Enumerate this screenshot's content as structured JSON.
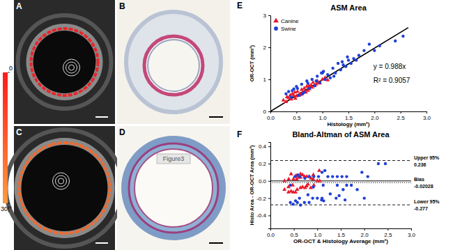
{
  "panels": {
    "labels": [
      "A",
      "B",
      "C",
      "D",
      "E",
      "F"
    ],
    "colorbar": {
      "range": [
        0,
        30
      ],
      "ticks": [
        0,
        {
          "value": 30,
          "label": "30|°"
        }
      ]
    },
    "watermark": "Figure3"
  },
  "chart_data": [
    {
      "type": "scatter",
      "title": "ASM Area",
      "x_label": "Histology (mm²)",
      "y_label": "OR-OCT (mm²)",
      "xlim": [
        0,
        3
      ],
      "ylim": [
        0,
        3
      ],
      "xticks": [
        {
          "value": 0,
          "label": "0.0"
        },
        0.5,
        {
          "value": 1,
          "label": "1.0"
        },
        1.5,
        {
          "value": 2,
          "label": "2.0"
        },
        2.5,
        {
          "value": 3,
          "label": "3.0"
        }
      ],
      "yticks": [
        0,
        1,
        2,
        3
      ],
      "legend": "top-left",
      "series": [
        {
          "name": "Canine",
          "color": "#e8192c",
          "marker": "triangle",
          "x": [
            0.25,
            0.3,
            0.32,
            0.35,
            0.38,
            0.4,
            0.42,
            0.45,
            0.47,
            0.5,
            0.52,
            0.55,
            0.57,
            0.6,
            0.62,
            0.65,
            0.68,
            0.7,
            0.72,
            0.75,
            0.78,
            0.8,
            0.82,
            0.85,
            0.88,
            0.9,
            0.95,
            1.0,
            1.05,
            1.1,
            0.48,
            0.58,
            0.66,
            0.74,
            0.92
          ],
          "values": [
            0.35,
            0.3,
            0.45,
            0.42,
            0.5,
            0.38,
            0.55,
            0.5,
            0.6,
            0.48,
            0.62,
            0.5,
            0.55,
            0.68,
            0.58,
            0.72,
            0.6,
            0.78,
            0.65,
            0.7,
            0.82,
            0.75,
            0.9,
            0.8,
            0.85,
            0.95,
            0.88,
            1.0,
            1.05,
            0.98,
            0.4,
            0.52,
            0.62,
            0.8,
            0.9
          ]
        },
        {
          "name": "Swine",
          "color": "#1f3fd8",
          "marker": "circle",
          "x": [
            0.3,
            0.35,
            0.4,
            0.45,
            0.5,
            0.55,
            0.6,
            0.65,
            0.7,
            0.75,
            0.8,
            0.85,
            0.9,
            0.95,
            1.0,
            1.05,
            1.1,
            1.15,
            1.2,
            1.25,
            1.3,
            1.35,
            1.4,
            1.45,
            1.5,
            1.55,
            1.6,
            1.65,
            1.7,
            1.8,
            1.9,
            2.0,
            2.1,
            2.4,
            2.55,
            0.42,
            0.52,
            0.62,
            0.72,
            0.88,
            1.02,
            1.22,
            1.38,
            1.48,
            0.98
          ],
          "values": [
            0.55,
            0.62,
            0.45,
            0.7,
            0.78,
            0.5,
            0.85,
            0.6,
            0.95,
            0.72,
            1.0,
            0.8,
            1.1,
            0.9,
            1.2,
            1.0,
            1.15,
            1.05,
            1.35,
            1.2,
            1.5,
            1.3,
            1.45,
            1.4,
            1.6,
            1.5,
            1.65,
            1.6,
            1.75,
            1.9,
            2.1,
            1.9,
            2.05,
            2.2,
            2.35,
            0.65,
            0.72,
            0.55,
            0.88,
            0.95,
            1.25,
            1.1,
            1.55,
            1.7,
            1.2
          ]
        }
      ],
      "fit": {
        "color": "#000000",
        "x": [
          0,
          2.65
        ],
        "values": [
          0,
          2.618
        ]
      },
      "annotations": [
        "y = 0.988x",
        "R² = 0.9057"
      ]
    },
    {
      "type": "scatter",
      "title": "Bland-Altman of ASM Area",
      "x_label": "OR-OCT & Histology Average (mm²)",
      "y_label": "Histo Area - OR-OCT Area (mm²)",
      "xlim": [
        0,
        3
      ],
      "ylim": [
        -0.55,
        0.45
      ],
      "xticks": [
        {
          "value": 0,
          "label": "0.0"
        },
        0.5,
        {
          "value": 1,
          "label": "1.0"
        },
        1.5,
        {
          "value": 2,
          "label": "2.0"
        },
        2.5,
        {
          "value": 3,
          "label": "3.0"
        }
      ],
      "yticks": [
        -0.4,
        -0.2,
        {
          "value": 0,
          "label": "0.0"
        },
        0.2,
        0.4
      ],
      "series": [
        {
          "color": "#e8192c",
          "marker": "triangle",
          "x": [
            0.3,
            0.3,
            0.385,
            0.385,
            0.44,
            0.39,
            0.485,
            0.475,
            0.535,
            0.49,
            0.57,
            0.525,
            0.56,
            0.64,
            0.6,
            0.685,
            0.64,
            0.74,
            0.685,
            0.725,
            0.8,
            0.775,
            0.86,
            0.825,
            0.865,
            0.925,
            0.915,
            1.0,
            1.05,
            1.04,
            0.44,
            0.55,
            0.64,
            0.77,
            0.91
          ],
          "values": [
            -0.1,
            0,
            -0.13,
            -0.07,
            -0.12,
            0.02,
            -0.13,
            -0.05,
            -0.13,
            0.02,
            -0.1,
            0.05,
            0.02,
            -0.08,
            0.04,
            -0.07,
            0.08,
            -0.08,
            0.07,
            0.05,
            -0.04,
            0.05,
            -0.08,
            0.05,
            0.03,
            -0.05,
            0.07,
            0,
            0,
            0.12,
            0.08,
            0.06,
            0.04,
            -0.06,
            0.02
          ]
        },
        {
          "color": "#1f3fd8",
          "marker": "circle",
          "x": [
            0.425,
            0.485,
            0.425,
            0.575,
            0.64,
            0.525,
            0.725,
            0.625,
            0.825,
            0.735,
            0.9,
            0.825,
            1.0,
            0.925,
            1.1,
            1.025,
            1.125,
            1.1,
            1.275,
            1.225,
            1.4,
            1.325,
            1.425,
            1.425,
            1.55,
            1.525,
            1.625,
            1.625,
            1.725,
            1.85,
            2.0,
            1.95,
            2.075,
            2.3,
            2.45,
            0.535,
            0.62,
            0.585,
            0.8,
            0.915,
            1.135,
            1.16,
            1.465,
            1.59,
            1.09
          ],
          "values": [
            -0.25,
            -0.27,
            -0.05,
            -0.25,
            -0.28,
            0.05,
            -0.25,
            0.05,
            -0.25,
            0.03,
            -0.2,
            0.05,
            -0.2,
            0.05,
            -0.2,
            0.05,
            -0.05,
            0.1,
            -0.15,
            0.05,
            -0.2,
            0.05,
            -0.05,
            0.05,
            -0.1,
            0.05,
            -0.05,
            0.05,
            -0.05,
            -0.1,
            -0.2,
            0.1,
            0.05,
            0.2,
            0.2,
            -0.23,
            -0.2,
            0.07,
            -0.16,
            -0.07,
            -0.23,
            0.12,
            -0.17,
            -0.22,
            -0.22
          ]
        }
      ],
      "reference_lines": [
        {
          "value": 0,
          "line_style": "solid"
        },
        {
          "label": "Upper 95%",
          "value": 0.236,
          "line_style": "dashed"
        },
        {
          "label": "Bias",
          "value": -0.02028,
          "line_style": "dotted"
        },
        {
          "label": "Lower 95%",
          "value": -0.277,
          "line_style": "dashed"
        }
      ]
    }
  ]
}
